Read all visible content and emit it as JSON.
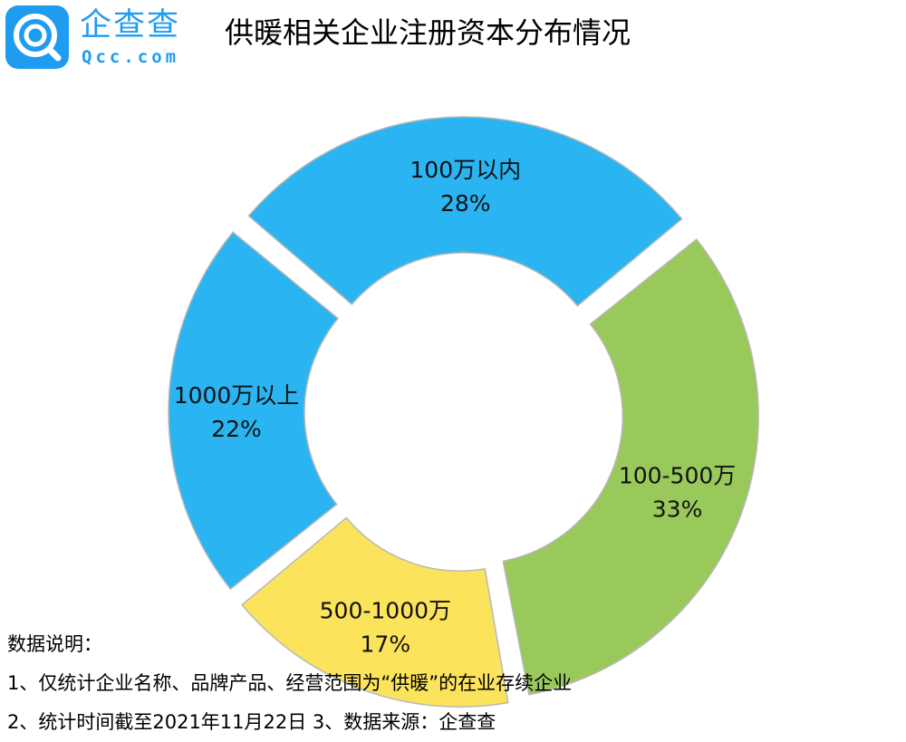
{
  "logo": {
    "name": "企查查",
    "domain": "Qcc.com",
    "brand_color": "#1f9cf0",
    "icon": "qcc-logo-icon"
  },
  "title": "供暖相关企业注册资本分布情况",
  "chart_data": {
    "type": "pie",
    "variant": "donut",
    "categories": [
      "100万以内",
      "100-500万",
      "500-1000万",
      "1000万以上"
    ],
    "values": [
      28,
      33,
      17,
      22
    ],
    "value_labels": [
      "28%",
      "33%",
      "17%",
      "22%"
    ],
    "colors": [
      "#2ab4f2",
      "#99c95b",
      "#fbe35c",
      "#2ab4f2"
    ],
    "start_angle_deg": -140,
    "exploded": true
  },
  "notes": {
    "heading": "数据说明：",
    "line1": "1、仅统计企业名称、品牌产品、经营范围为“供暖”的在业存续企业",
    "line2": "2、统计时间截至2021年11月22日   3、数据来源：企查查"
  }
}
